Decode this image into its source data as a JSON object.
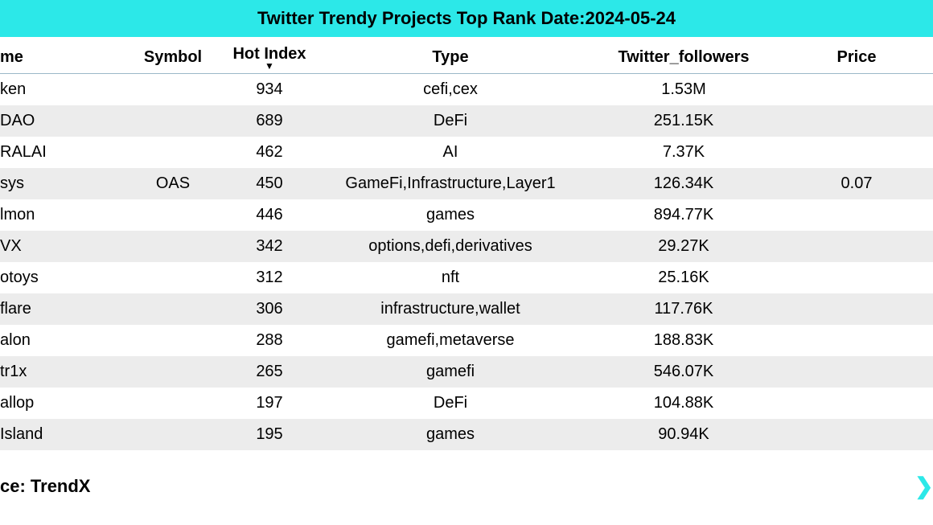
{
  "title": "Twitter Trendy Projects Top Rank Date:2024-05-24",
  "columns": {
    "name": "me",
    "symbol": "Symbol",
    "hot": "Hot Index",
    "type": "Type",
    "followers": "Twitter_followers",
    "price": "Price"
  },
  "sort_glyph": "▼",
  "rows": [
    {
      "name": "ken",
      "symbol": "",
      "hot": "934",
      "type": "cefi,cex",
      "followers": "1.53M",
      "price": ""
    },
    {
      "name": " DAO",
      "symbol": "",
      "hot": "689",
      "type": "DeFi",
      "followers": "251.15K",
      "price": ""
    },
    {
      "name": "RALAI",
      "symbol": "",
      "hot": "462",
      "type": "AI",
      "followers": "7.37K",
      "price": ""
    },
    {
      "name": "sys",
      "symbol": "OAS",
      "hot": "450",
      "type": "GameFi,Infrastructure,Layer1",
      "followers": "126.34K",
      "price": "0.07"
    },
    {
      "name": "lmon",
      "symbol": "",
      "hot": "446",
      "type": "games",
      "followers": "894.77K",
      "price": ""
    },
    {
      "name": "VX",
      "symbol": "",
      "hot": "342",
      "type": "options,defi,derivatives",
      "followers": "29.27K",
      "price": ""
    },
    {
      "name": "otoys",
      "symbol": "",
      "hot": "312",
      "type": "nft",
      "followers": "25.16K",
      "price": ""
    },
    {
      "name": "flare",
      "symbol": "",
      "hot": "306",
      "type": "infrastructure,wallet",
      "followers": "117.76K",
      "price": ""
    },
    {
      "name": "alon",
      "symbol": "",
      "hot": "288",
      "type": "gamefi,metaverse",
      "followers": "188.83K",
      "price": ""
    },
    {
      "name": "tr1x",
      "symbol": "",
      "hot": "265",
      "type": "gamefi",
      "followers": "546.07K",
      "price": ""
    },
    {
      "name": "allop",
      "symbol": "",
      "hot": "197",
      "type": "DeFi",
      "followers": "104.88K",
      "price": ""
    },
    {
      "name": "Island",
      "symbol": "",
      "hot": "195",
      "type": "games",
      "followers": "90.94K",
      "price": ""
    }
  ],
  "source_label": "ce: TrendX",
  "scroll_glyph": "❮",
  "colors": {
    "header_bg": "#2ce8e8",
    "row_alt_bg": "#ececec",
    "border": "#9bb8c8",
    "text": "#000000",
    "scroll_indicator": "#2ce8e8"
  }
}
